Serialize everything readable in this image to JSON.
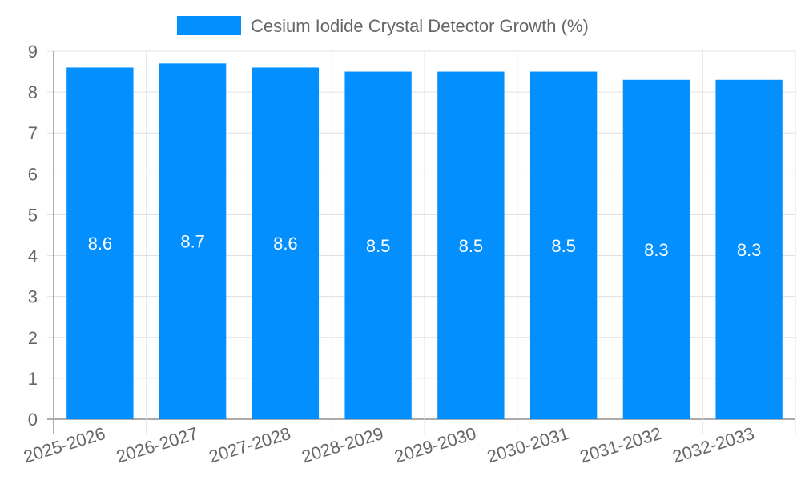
{
  "chart_data": {
    "type": "bar",
    "title": "",
    "legend": [
      {
        "label": "Cesium Iodide Crystal Detector Growth (%)",
        "color": "#038ffe"
      }
    ],
    "legend_position": "top",
    "categories": [
      "2025-2026",
      "2026-2027",
      "2027-2028",
      "2028-2029",
      "2029-2030",
      "2030-2031",
      "2031-2032",
      "2032-2033"
    ],
    "series": [
      {
        "name": "Cesium Iodide Crystal Detector Growth (%)",
        "values": [
          8.6,
          8.7,
          8.6,
          8.5,
          8.5,
          8.5,
          8.3,
          8.3
        ],
        "color": "#038ffe"
      }
    ],
    "data_labels": [
      "8.6",
      "8.7",
      "8.6",
      "8.5",
      "8.5",
      "8.5",
      "8.3",
      "8.3"
    ],
    "xlabel": "",
    "ylabel": "",
    "ylim": [
      0,
      9
    ],
    "y_ticks": [
      "0",
      "1",
      "2",
      "3",
      "4",
      "5",
      "6",
      "7",
      "8",
      "9"
    ],
    "grid": true
  }
}
